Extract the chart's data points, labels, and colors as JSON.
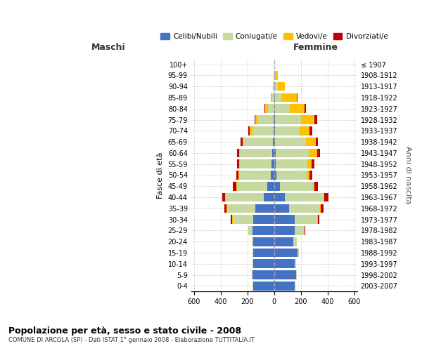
{
  "age_groups": [
    "0-4",
    "5-9",
    "10-14",
    "15-19",
    "20-24",
    "25-29",
    "30-34",
    "35-39",
    "40-44",
    "45-49",
    "50-54",
    "55-59",
    "60-64",
    "65-69",
    "70-74",
    "75-79",
    "80-84",
    "85-89",
    "90-94",
    "95-99",
    "100+"
  ],
  "birth_years": [
    "2003-2007",
    "1998-2002",
    "1993-1997",
    "1988-1992",
    "1983-1987",
    "1978-1982",
    "1973-1977",
    "1968-1972",
    "1963-1967",
    "1958-1962",
    "1953-1957",
    "1948-1952",
    "1943-1947",
    "1938-1942",
    "1933-1937",
    "1928-1932",
    "1923-1927",
    "1918-1922",
    "1913-1917",
    "1908-1912",
    "≤ 1907"
  ],
  "maschi_celibi": [
    155,
    160,
    155,
    155,
    155,
    160,
    155,
    140,
    80,
    50,
    25,
    20,
    15,
    10,
    5,
    5,
    0,
    0,
    0,
    0,
    0
  ],
  "maschi_coniugati": [
    5,
    5,
    5,
    5,
    10,
    35,
    155,
    210,
    280,
    230,
    235,
    235,
    240,
    220,
    155,
    120,
    45,
    15,
    5,
    2,
    0
  ],
  "maschi_vedovi": [
    0,
    0,
    0,
    0,
    0,
    0,
    5,
    5,
    5,
    5,
    5,
    5,
    5,
    5,
    25,
    15,
    20,
    10,
    5,
    0,
    0
  ],
  "maschi_divorziati": [
    0,
    0,
    0,
    0,
    0,
    0,
    10,
    15,
    25,
    25,
    20,
    20,
    20,
    15,
    10,
    5,
    5,
    0,
    0,
    0,
    0
  ],
  "femmine_celibi": [
    155,
    165,
    155,
    175,
    145,
    155,
    155,
    110,
    80,
    45,
    15,
    10,
    10,
    5,
    5,
    5,
    5,
    5,
    0,
    0,
    0
  ],
  "femmine_coniugati": [
    5,
    5,
    10,
    10,
    25,
    70,
    165,
    235,
    290,
    245,
    230,
    240,
    250,
    235,
    185,
    195,
    110,
    50,
    25,
    5,
    0
  ],
  "femmine_vedovi": [
    0,
    0,
    0,
    0,
    0,
    0,
    5,
    5,
    5,
    10,
    20,
    30,
    60,
    70,
    75,
    100,
    110,
    115,
    55,
    20,
    2
  ],
  "femmine_divorziati": [
    0,
    0,
    0,
    0,
    0,
    5,
    10,
    20,
    30,
    25,
    20,
    20,
    20,
    15,
    20,
    20,
    10,
    5,
    0,
    0,
    0
  ],
  "color_celibi": "#4472c4",
  "color_coniugati": "#c5d9a0",
  "color_vedovi": "#ffc000",
  "color_divorziati": "#c0000a",
  "title": "Popolazione per età, sesso e stato civile - 2008",
  "subtitle": "COMUNE DI ARCOLA (SP) - Dati ISTAT 1° gennaio 2008 - Elaborazione TUTTITALIA.IT",
  "xlabel_left": "Maschi",
  "xlabel_right": "Femmine",
  "ylabel_left": "Fasce di età",
  "ylabel_right": "Anni di nascita",
  "xlim": 620,
  "legend_labels": [
    "Celibi/Nubili",
    "Coniugati/e",
    "Vedovi/e",
    "Divorziati/e"
  ],
  "background_color": "#ffffff",
  "grid_color": "#cccccc"
}
